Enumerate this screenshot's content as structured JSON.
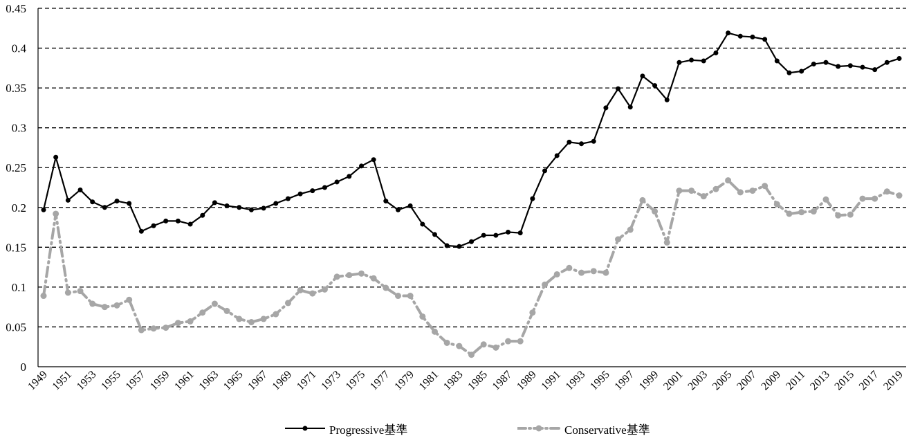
{
  "chart_data": {
    "type": "line",
    "title": "",
    "xlabel": "",
    "ylabel": "",
    "ylim": [
      0,
      0.45
    ],
    "yticks": [
      "0",
      "0.05",
      "0.1",
      "0.15",
      "0.2",
      "0.25",
      "0.3",
      "0.35",
      "0.4",
      "0.45"
    ],
    "grid": "horizontal dashed",
    "legend_position": "bottom",
    "x": [
      1949,
      1950,
      1951,
      1952,
      1953,
      1954,
      1955,
      1956,
      1957,
      1958,
      1959,
      1960,
      1961,
      1962,
      1963,
      1964,
      1965,
      1966,
      1967,
      1968,
      1969,
      1970,
      1971,
      1972,
      1973,
      1974,
      1975,
      1976,
      1977,
      1978,
      1979,
      1980,
      1981,
      1982,
      1983,
      1984,
      1985,
      1986,
      1987,
      1988,
      1989,
      1990,
      1991,
      1992,
      1993,
      1994,
      1995,
      1996,
      1997,
      1998,
      1999,
      2000,
      2001,
      2002,
      2003,
      2004,
      2005,
      2006,
      2007,
      2008,
      2009,
      2010,
      2011,
      2012,
      2013,
      2014,
      2015,
      2016,
      2017,
      2018,
      2019
    ],
    "xtick_labels": [
      "1949",
      "1951",
      "1953",
      "1955",
      "1957",
      "1959",
      "1961",
      "1963",
      "1965",
      "1967",
      "1969",
      "1971",
      "1973",
      "1975",
      "1977",
      "1979",
      "1981",
      "1983",
      "1985",
      "1987",
      "1989",
      "1991",
      "1993",
      "1995",
      "1997",
      "1999",
      "2001",
      "2003",
      "2005",
      "2007",
      "2009",
      "2011",
      "2013",
      "2015",
      "2017",
      "2019"
    ],
    "series": [
      {
        "name": "Progressive基準",
        "color": "#000000",
        "style": "solid",
        "values": [
          0.197,
          0.263,
          0.209,
          0.222,
          0.207,
          0.2,
          0.208,
          0.205,
          0.17,
          0.177,
          0.183,
          0.183,
          0.179,
          0.19,
          0.206,
          0.202,
          0.2,
          0.197,
          0.199,
          0.205,
          0.211,
          0.217,
          0.221,
          0.225,
          0.232,
          0.239,
          0.252,
          0.26,
          0.208,
          0.197,
          0.202,
          0.179,
          0.166,
          0.152,
          0.151,
          0.157,
          0.165,
          0.165,
          0.169,
          0.168,
          0.211,
          0.246,
          0.265,
          0.282,
          0.28,
          0.283,
          0.325,
          0.349,
          0.326,
          0.365,
          0.353,
          0.335,
          0.382,
          0.385,
          0.384,
          0.394,
          0.419,
          0.415,
          0.414,
          0.411,
          0.384,
          0.369,
          0.371,
          0.38,
          0.382,
          0.377,
          0.378,
          0.376,
          0.373,
          0.382,
          0.387
        ]
      },
      {
        "name": "Conservative基準",
        "color": "#a6a6a6",
        "style": "dash-dot",
        "values": [
          0.089,
          0.192,
          0.093,
          0.095,
          0.079,
          0.075,
          0.077,
          0.084,
          0.046,
          0.048,
          0.049,
          0.055,
          0.057,
          0.068,
          0.079,
          0.07,
          0.06,
          0.056,
          0.06,
          0.066,
          0.08,
          0.096,
          0.092,
          0.097,
          0.113,
          0.115,
          0.117,
          0.111,
          0.099,
          0.089,
          0.089,
          0.063,
          0.044,
          0.03,
          0.026,
          0.015,
          0.028,
          0.024,
          0.032,
          0.032,
          0.068,
          0.103,
          0.116,
          0.124,
          0.118,
          0.12,
          0.118,
          0.16,
          0.172,
          0.209,
          0.195,
          0.156,
          0.221,
          0.221,
          0.214,
          0.223,
          0.234,
          0.219,
          0.221,
          0.227,
          0.204,
          0.192,
          0.194,
          0.195,
          0.21,
          0.19,
          0.191,
          0.211,
          0.211,
          0.22,
          0.215
        ]
      }
    ]
  },
  "legend": {
    "items": [
      {
        "label": "Progressive基準"
      },
      {
        "label": "Conservative基準"
      }
    ]
  }
}
